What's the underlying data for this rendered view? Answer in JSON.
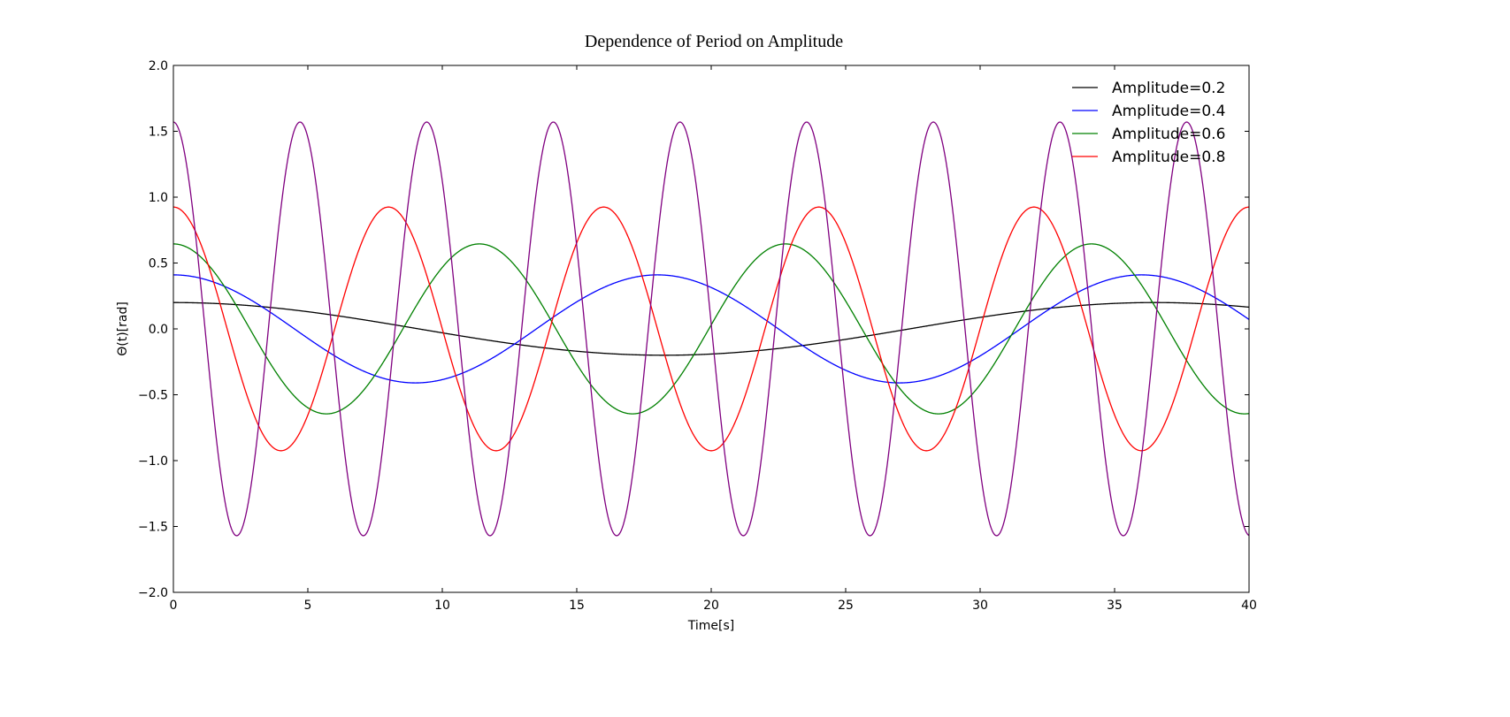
{
  "chart_data": {
    "type": "line",
    "title": "Dependence of Period on Amplitude",
    "xlabel": "Time[s]",
    "ylabel": "Θ(t)[rad]",
    "xlim": [
      0,
      40
    ],
    "ylim": [
      -2.0,
      2.0
    ],
    "xticks": [
      "0",
      "5",
      "10",
      "15",
      "20",
      "25",
      "30",
      "35",
      "40"
    ],
    "yticks": [
      "−2.0",
      "−1.5",
      "−1.0",
      "−0.5",
      "0.0",
      "0.5",
      "1.0",
      "1.5",
      "2.0"
    ],
    "grid": false,
    "legend_position": "top-right",
    "series": [
      {
        "name": "Amplitude=0.2",
        "color": "#000000",
        "amplitude": 0.2,
        "period": 36.5
      },
      {
        "name": "Amplitude=0.4",
        "color": "#0000ff",
        "amplitude": 0.41,
        "period": 18.0
      },
      {
        "name": "Amplitude=0.6",
        "color": "#008000",
        "amplitude": 0.645,
        "period": 11.38
      },
      {
        "name": "Amplitude=0.8",
        "color": "#ff0000",
        "amplitude": 0.925,
        "period": 8.0
      },
      {
        "color": "#800080",
        "amplitude": 1.57,
        "period": 4.71
      }
    ]
  }
}
